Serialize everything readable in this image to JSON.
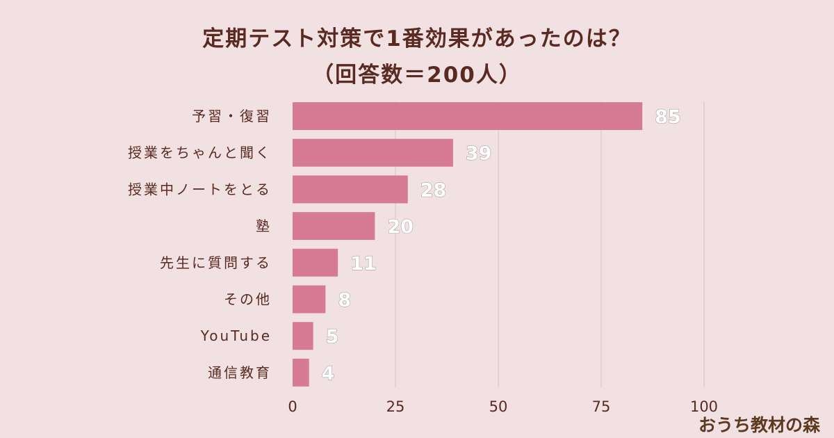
{
  "chart_data": {
    "type": "bar",
    "orientation": "horizontal",
    "title": "定期テスト対策で1番効果があったのは？",
    "subtitle": "（回答数＝200人）",
    "categories": [
      "予習・復習",
      "授業をちゃんと聞く",
      "授業中ノートをとる",
      "塾",
      "先生に質問する",
      "その他",
      "YouTube",
      "通信教育"
    ],
    "values": [
      85,
      39,
      28,
      20,
      11,
      8,
      5,
      4
    ],
    "xlim": [
      0,
      100
    ],
    "xticks": [
      0,
      25,
      50,
      75,
      100
    ],
    "grid": "vertical",
    "bar_color": "#d67b93",
    "grid_color": "#dcbec3"
  },
  "brand": "おうち教材の森"
}
